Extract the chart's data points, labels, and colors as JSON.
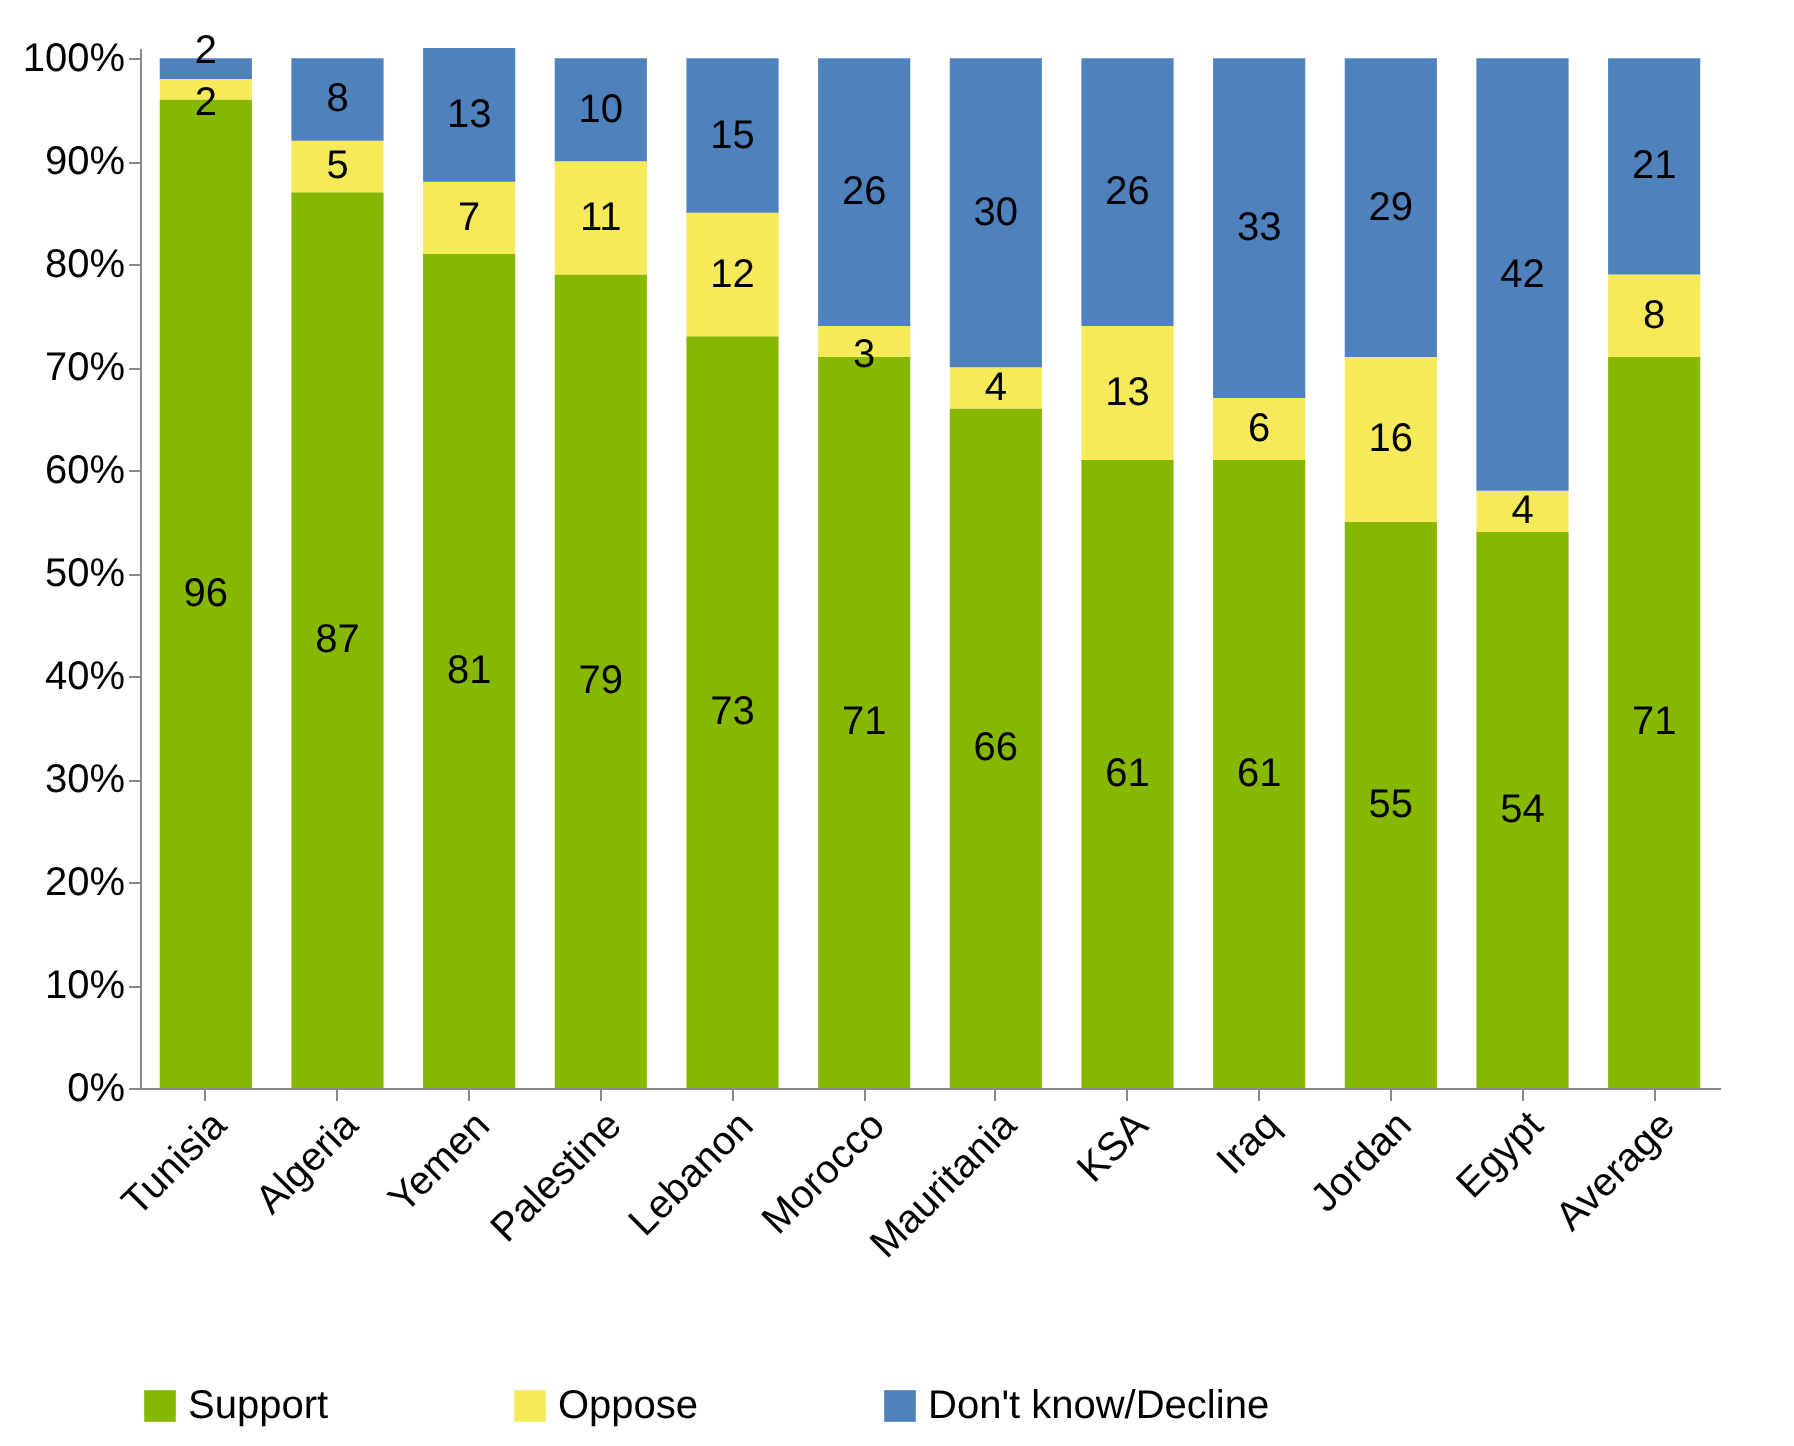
{
  "chart_data": {
    "type": "bar",
    "stacked": true,
    "categories": [
      "Tunisia",
      "Algeria",
      "Yemen",
      "Palestine",
      "Lebanon",
      "Morocco",
      "Mauritania",
      "KSA",
      "Iraq",
      "Jordan",
      "Egypt",
      "Average"
    ],
    "series": [
      {
        "name": "Support",
        "color": "#86b800",
        "values": [
          96,
          87,
          81,
          79,
          73,
          71,
          66,
          61,
          61,
          55,
          54,
          71
        ]
      },
      {
        "name": "Oppose",
        "color": "#f7ea5a",
        "values": [
          2,
          5,
          7,
          11,
          12,
          3,
          4,
          13,
          6,
          16,
          4,
          8
        ]
      },
      {
        "name": "Don't know/Decline",
        "color": "#4f81bd",
        "values": [
          2,
          8,
          13,
          10,
          15,
          26,
          30,
          26,
          33,
          29,
          42,
          21
        ]
      }
    ],
    "ylim": [
      0,
      101
    ],
    "yticks": [
      {
        "value": 0,
        "label": "0%"
      },
      {
        "value": 10,
        "label": "10%"
      },
      {
        "value": 20,
        "label": "20%"
      },
      {
        "value": 30,
        "label": "30%"
      },
      {
        "value": 40,
        "label": "40%"
      },
      {
        "value": 50,
        "label": "50%"
      },
      {
        "value": 60,
        "label": "60%"
      },
      {
        "value": 70,
        "label": "70%"
      },
      {
        "value": 80,
        "label": "80%"
      },
      {
        "value": 90,
        "label": "90%"
      },
      {
        "value": 100,
        "label": "100%"
      }
    ],
    "data_labels": true,
    "legend": "bottom",
    "grid": false
  }
}
